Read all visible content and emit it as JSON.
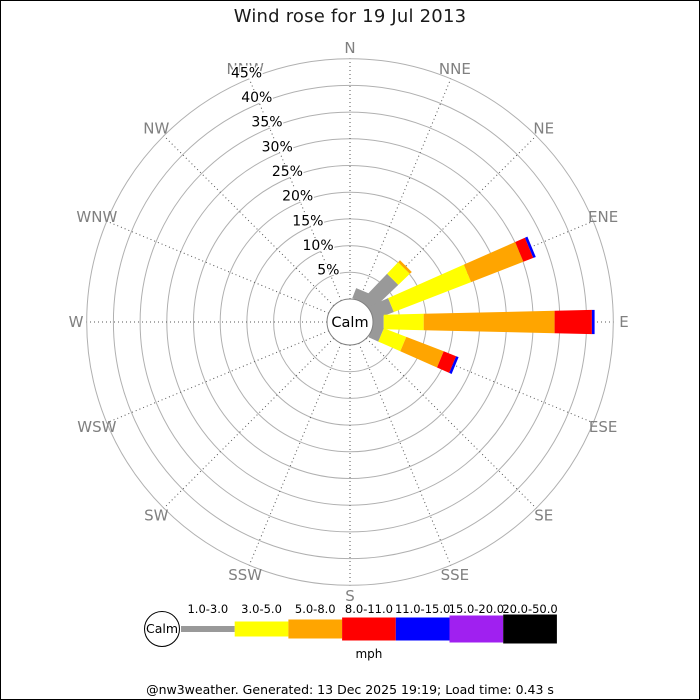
{
  "header": {
    "title": "Wind rose for 19 Jul 2013"
  },
  "footer": {
    "text": "@nw3weather. Generated: 13 Dec 2025 19:19; Load time: 0.43 s"
  },
  "chart_data": {
    "type": "bar",
    "polar": true,
    "title": "Wind rose for 19 Jul 2013",
    "center_label": "Calm",
    "units_label": "mph",
    "ring_ticks_percent": [
      5,
      10,
      15,
      20,
      25,
      30,
      35,
      40,
      45
    ],
    "ylim": [
      0,
      45
    ],
    "grid": true,
    "directions": [
      "N",
      "NNE",
      "NE",
      "ENE",
      "E",
      "ESE",
      "SE",
      "SSE",
      "S",
      "SSW",
      "SW",
      "WSW",
      "W",
      "WNW",
      "NW",
      "NNW"
    ],
    "speed_bins": [
      {
        "label": "1.0-3.0",
        "color": "#999999"
      },
      {
        "label": "3.0-5.0",
        "color": "#ffff00"
      },
      {
        "label": "5.0-8.0",
        "color": "#ffa500"
      },
      {
        "label": "8.0-11.0",
        "color": "#ff0000"
      },
      {
        "label": "11.0-15.0",
        "color": "#0000ff"
      },
      {
        "label": "15.0-20.0",
        "color": "#a020f0"
      },
      {
        "label": "20.0-50.0",
        "color": "#000000"
      }
    ],
    "series": [
      {
        "name": "N",
        "values": [
          0,
          0,
          0,
          0,
          0,
          0,
          0
        ]
      },
      {
        "name": "NNE",
        "values": [
          2,
          0,
          0,
          0,
          0,
          0,
          0
        ]
      },
      {
        "name": "NE",
        "values": [
          7,
          3,
          0.5,
          0,
          0,
          0,
          0
        ]
      },
      {
        "name": "ENE",
        "values": [
          4,
          15.5,
          10.5,
          2,
          0.5,
          0,
          0
        ]
      },
      {
        "name": "E",
        "values": [
          2,
          7.5,
          24.5,
          7,
          0.5,
          0,
          0
        ]
      },
      {
        "name": "ESE",
        "values": [
          2,
          4.5,
          7.5,
          2.5,
          0.5,
          0,
          0
        ]
      },
      {
        "name": "SE",
        "values": [
          0,
          0,
          0,
          0,
          0,
          0,
          0
        ]
      },
      {
        "name": "SSE",
        "values": [
          0,
          0,
          0,
          0,
          0,
          0,
          0
        ]
      },
      {
        "name": "S",
        "values": [
          0,
          0,
          0,
          0,
          0,
          0,
          0
        ]
      },
      {
        "name": "SSW",
        "values": [
          0,
          0,
          0,
          0,
          0,
          0,
          0
        ]
      },
      {
        "name": "SW",
        "values": [
          0,
          0,
          0,
          0,
          0,
          0,
          0
        ]
      },
      {
        "name": "WSW",
        "values": [
          0,
          0,
          0,
          0,
          0,
          0,
          0
        ]
      },
      {
        "name": "W",
        "values": [
          0,
          0,
          0,
          0,
          0,
          0,
          0
        ]
      },
      {
        "name": "WNW",
        "values": [
          0,
          0,
          0,
          0,
          0,
          0,
          0
        ]
      },
      {
        "name": "NW",
        "values": [
          0,
          0,
          0,
          0,
          0,
          0,
          0
        ]
      },
      {
        "name": "NNW",
        "values": [
          0,
          0,
          0,
          0,
          0,
          0,
          0
        ]
      }
    ],
    "legend": {
      "calm_label": "Calm",
      "position": "bottom"
    },
    "colors": {
      "ring_grid": "#b0b0b0",
      "spoke_grid": "#555555",
      "compass_label": "#808080",
      "percent_label": "#000000"
    }
  }
}
